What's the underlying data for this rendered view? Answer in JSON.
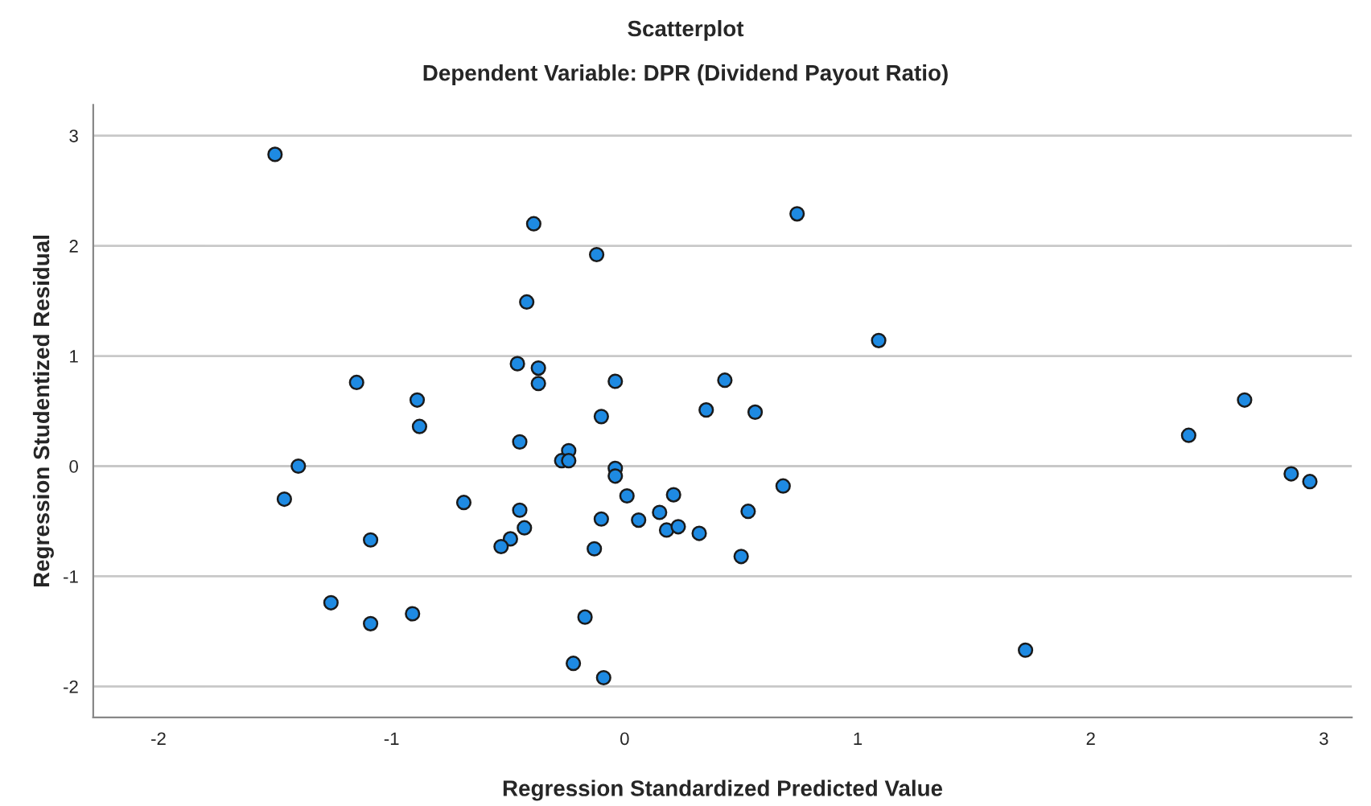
{
  "chart_data": {
    "type": "scatter",
    "title": "Scatterplot",
    "subtitle": "Dependent Variable: DPR (Dividend Payout Ratio)",
    "xlabel": "Regression Standardized Predicted Value",
    "ylabel": "Regression Studentized Residual",
    "x": [
      -1.5,
      -0.39,
      -0.12,
      -0.42,
      -0.46,
      -0.37,
      -0.37,
      -1.15,
      -0.04,
      -0.89,
      -0.88,
      -0.1,
      -0.45,
      -0.24,
      -0.27,
      -0.24,
      -1.4,
      -0.04,
      -0.04,
      -1.46,
      -0.69,
      0.01,
      0.21,
      -0.45,
      -0.43,
      -0.1,
      0.06,
      0.15,
      0.18,
      0.23,
      -1.09,
      -0.49,
      -0.53,
      -0.13,
      -1.26,
      -0.91,
      -1.09,
      -0.17,
      -0.22,
      -0.09,
      0.74,
      1.09,
      0.43,
      0.35,
      0.56,
      0.68,
      0.32,
      0.53,
      0.5,
      1.72,
      2.42,
      2.66,
      2.86,
      2.94
    ],
    "values": [
      2.83,
      2.2,
      1.92,
      1.49,
      0.93,
      0.89,
      0.75,
      0.76,
      0.77,
      0.6,
      0.36,
      0.45,
      0.22,
      0.14,
      0.05,
      0.05,
      0.0,
      -0.02,
      -0.09,
      -0.3,
      -0.33,
      -0.27,
      -0.26,
      -0.4,
      -0.56,
      -0.48,
      -0.49,
      -0.42,
      -0.58,
      -0.55,
      -0.67,
      -0.66,
      -0.73,
      -0.75,
      -1.24,
      -1.34,
      -1.43,
      -1.37,
      -1.79,
      -1.92,
      2.29,
      1.14,
      0.78,
      0.51,
      0.49,
      -0.18,
      -0.61,
      -0.41,
      -0.82,
      -1.67,
      0.28,
      0.6,
      -0.07,
      -0.14
    ],
    "color": "#1e8ae2",
    "marker": "circle",
    "xlim": [
      -2.28,
      3.12
    ],
    "ylim": [
      -2.28,
      3.28
    ],
    "xticks": [
      {
        "value": -2,
        "label": "-2"
      },
      {
        "value": -1,
        "label": "-1"
      },
      0,
      1,
      2,
      3
    ],
    "yticks": [
      {
        "value": -2,
        "label": "-2"
      },
      {
        "value": -1,
        "label": "-1"
      },
      0,
      1,
      2,
      3
    ],
    "grid": "y"
  }
}
